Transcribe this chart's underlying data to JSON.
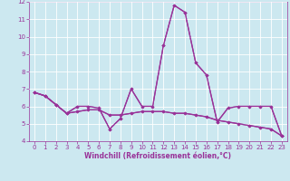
{
  "xlabel": "Windchill (Refroidissement éolien,°C)",
  "x": [
    0,
    1,
    2,
    3,
    4,
    5,
    6,
    7,
    8,
    9,
    10,
    11,
    12,
    13,
    14,
    15,
    16,
    17,
    18,
    19,
    20,
    21,
    22,
    23
  ],
  "y_line1": [
    6.8,
    6.6,
    6.1,
    5.6,
    6.0,
    6.0,
    5.9,
    4.7,
    5.3,
    7.0,
    6.0,
    6.0,
    9.5,
    11.8,
    11.4,
    8.5,
    7.8,
    5.1,
    5.9,
    6.0,
    6.0,
    6.0,
    6.0,
    4.3
  ],
  "y_line2": [
    6.8,
    6.6,
    6.1,
    5.6,
    5.7,
    5.8,
    5.8,
    5.5,
    5.5,
    5.6,
    5.7,
    5.7,
    5.7,
    5.6,
    5.6,
    5.5,
    5.4,
    5.2,
    5.1,
    5.0,
    4.9,
    4.8,
    4.7,
    4.3
  ],
  "line_color": "#993399",
  "bg_color": "#cce8f0",
  "grid_color": "#ffffff",
  "ylim": [
    4,
    12
  ],
  "xlim": [
    -0.5,
    23.5
  ],
  "yticks": [
    4,
    5,
    6,
    7,
    8,
    9,
    10,
    11,
    12
  ],
  "xticks": [
    0,
    1,
    2,
    3,
    4,
    5,
    6,
    7,
    8,
    9,
    10,
    11,
    12,
    13,
    14,
    15,
    16,
    17,
    18,
    19,
    20,
    21,
    22,
    23
  ],
  "tick_fontsize": 5,
  "xlabel_fontsize": 5.5,
  "marker_size": 1.8,
  "line_width": 0.9
}
